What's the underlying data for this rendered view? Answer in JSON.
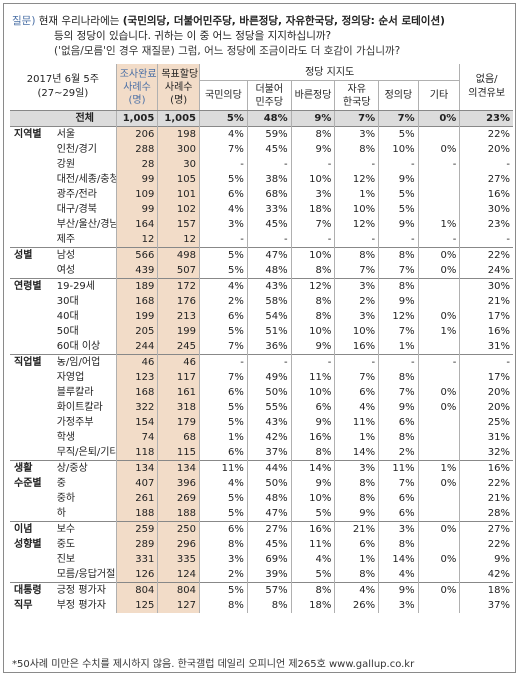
{
  "question": {
    "label": "질문)",
    "line1": "현재 우리나라에는",
    "line1_bold": "(국민의당, 더불어민주당, 바른정당, 자유한국당, 정의당: 순서 로테이션)",
    "line2": "등의 정당이 있습니다. 귀하는 이 중 어느 정당을 지지하십니까?",
    "line3": "('없음/모름'인 경우 재질문) 그럼, 어느 정당에 조금이라도 더 호감이 가십니까?"
  },
  "header": {
    "date": "2017년 6월 5주",
    "period": "(27~29일)",
    "sample": [
      "조사완료",
      "사례수",
      "(명)"
    ],
    "weighted": [
      "목표할당",
      "사례수",
      "(명)"
    ],
    "group": "정당 지지도",
    "parties": [
      "국민의당",
      "더불어민주당",
      "바른정당",
      "자유한국당",
      "정의당",
      "기타"
    ],
    "parties2": [
      "더불어",
      "민주당"
    ],
    "parties4": [
      "자유",
      "한국당"
    ],
    "none": [
      "없음/",
      "의견유보"
    ]
  },
  "rows": [
    {
      "group": "",
      "sub": "전체",
      "total": true,
      "v": [
        "1,005",
        "1,005",
        "5%",
        "48%",
        "9%",
        "7%",
        "7%",
        "0%",
        "23%"
      ]
    },
    {
      "group": "지역별",
      "sub": "서울",
      "sep": true,
      "v": [
        "206",
        "198",
        "4%",
        "59%",
        "8%",
        "3%",
        "5%",
        "",
        "22%"
      ]
    },
    {
      "group": "",
      "sub": "인천/경기",
      "v": [
        "288",
        "300",
        "7%",
        "45%",
        "9%",
        "8%",
        "10%",
        "0%",
        "20%"
      ]
    },
    {
      "group": "",
      "sub": "강원",
      "v": [
        "28",
        "30",
        "-",
        "-",
        "-",
        "-",
        "-",
        "-",
        "-"
      ]
    },
    {
      "group": "",
      "sub": "대전/세종/충청",
      "v": [
        "99",
        "105",
        "5%",
        "38%",
        "10%",
        "12%",
        "9%",
        "",
        "27%"
      ]
    },
    {
      "group": "",
      "sub": "광주/전라",
      "v": [
        "109",
        "101",
        "6%",
        "68%",
        "3%",
        "1%",
        "5%",
        "",
        "16%"
      ]
    },
    {
      "group": "",
      "sub": "대구/경북",
      "v": [
        "99",
        "102",
        "4%",
        "33%",
        "18%",
        "10%",
        "5%",
        "",
        "30%"
      ]
    },
    {
      "group": "",
      "sub": "부산/울산/경남",
      "v": [
        "164",
        "157",
        "3%",
        "45%",
        "7%",
        "12%",
        "9%",
        "1%",
        "23%"
      ]
    },
    {
      "group": "",
      "sub": "제주",
      "v": [
        "12",
        "12",
        "-",
        "-",
        "-",
        "-",
        "-",
        "-",
        "-"
      ]
    },
    {
      "group": "성별",
      "sub": "남성",
      "sep": true,
      "v": [
        "566",
        "498",
        "5%",
        "47%",
        "10%",
        "8%",
        "8%",
        "0%",
        "22%"
      ]
    },
    {
      "group": "",
      "sub": "여성",
      "v": [
        "439",
        "507",
        "5%",
        "48%",
        "8%",
        "7%",
        "7%",
        "0%",
        "24%"
      ]
    },
    {
      "group": "연령별",
      "sub": "19-29세",
      "sep": true,
      "v": [
        "189",
        "172",
        "4%",
        "43%",
        "12%",
        "3%",
        "8%",
        "",
        "30%"
      ]
    },
    {
      "group": "",
      "sub": "30대",
      "v": [
        "168",
        "176",
        "2%",
        "58%",
        "8%",
        "2%",
        "9%",
        "",
        "21%"
      ]
    },
    {
      "group": "",
      "sub": "40대",
      "v": [
        "199",
        "213",
        "6%",
        "54%",
        "8%",
        "3%",
        "12%",
        "0%",
        "17%"
      ]
    },
    {
      "group": "",
      "sub": "50대",
      "v": [
        "205",
        "199",
        "5%",
        "51%",
        "10%",
        "10%",
        "7%",
        "1%",
        "16%"
      ]
    },
    {
      "group": "",
      "sub": "60대 이상",
      "v": [
        "244",
        "245",
        "7%",
        "36%",
        "9%",
        "16%",
        "1%",
        "",
        "31%"
      ]
    },
    {
      "group": "직업별",
      "sub": "농/임/어업",
      "sep": true,
      "v": [
        "46",
        "46",
        "-",
        "-",
        "-",
        "-",
        "-",
        "-",
        "-"
      ]
    },
    {
      "group": "",
      "sub": "자영업",
      "v": [
        "123",
        "117",
        "7%",
        "49%",
        "11%",
        "7%",
        "8%",
        "",
        "17%"
      ]
    },
    {
      "group": "",
      "sub": "블루칼라",
      "v": [
        "168",
        "161",
        "6%",
        "50%",
        "10%",
        "6%",
        "7%",
        "0%",
        "20%"
      ]
    },
    {
      "group": "",
      "sub": "화이트칼라",
      "v": [
        "322",
        "318",
        "5%",
        "55%",
        "6%",
        "4%",
        "9%",
        "0%",
        "20%"
      ]
    },
    {
      "group": "",
      "sub": "가정주부",
      "v": [
        "154",
        "179",
        "5%",
        "43%",
        "9%",
        "11%",
        "6%",
        "",
        "25%"
      ]
    },
    {
      "group": "",
      "sub": "학생",
      "v": [
        "74",
        "68",
        "1%",
        "42%",
        "16%",
        "1%",
        "8%",
        "",
        "31%"
      ]
    },
    {
      "group": "",
      "sub": "무직/은퇴/기타",
      "v": [
        "118",
        "115",
        "6%",
        "37%",
        "8%",
        "14%",
        "2%",
        "",
        "32%"
      ]
    },
    {
      "group": "생활",
      "sub": "상/중상",
      "sep": true,
      "v": [
        "134",
        "134",
        "11%",
        "44%",
        "14%",
        "3%",
        "11%",
        "1%",
        "16%"
      ]
    },
    {
      "group": "수준별",
      "sub": "중",
      "v": [
        "407",
        "396",
        "4%",
        "50%",
        "9%",
        "8%",
        "7%",
        "0%",
        "22%"
      ]
    },
    {
      "group": "",
      "sub": "중하",
      "v": [
        "261",
        "269",
        "5%",
        "48%",
        "10%",
        "8%",
        "6%",
        "",
        "21%"
      ]
    },
    {
      "group": "",
      "sub": "하",
      "v": [
        "188",
        "188",
        "5%",
        "47%",
        "5%",
        "9%",
        "6%",
        "",
        "28%"
      ]
    },
    {
      "group": "이념",
      "sub": "보수",
      "sep": true,
      "v": [
        "259",
        "250",
        "6%",
        "27%",
        "16%",
        "21%",
        "3%",
        "0%",
        "27%"
      ]
    },
    {
      "group": "성향별",
      "sub": "중도",
      "v": [
        "289",
        "296",
        "8%",
        "45%",
        "11%",
        "6%",
        "8%",
        "",
        "22%"
      ]
    },
    {
      "group": "",
      "sub": "진보",
      "v": [
        "331",
        "335",
        "3%",
        "69%",
        "4%",
        "1%",
        "14%",
        "0%",
        "9%"
      ]
    },
    {
      "group": "",
      "sub": "모름/응답거절",
      "v": [
        "126",
        "124",
        "2%",
        "39%",
        "5%",
        "8%",
        "4%",
        "",
        "42%"
      ]
    },
    {
      "group": "대통령",
      "sub": "긍정 평가자",
      "sep": true,
      "v": [
        "804",
        "804",
        "5%",
        "57%",
        "8%",
        "4%",
        "9%",
        "0%",
        "18%"
      ]
    },
    {
      "group": "직무",
      "sub": "부정 평가자",
      "v": [
        "125",
        "127",
        "8%",
        "8%",
        "18%",
        "26%",
        "3%",
        "",
        "37%"
      ]
    }
  ],
  "footnote": "*50사례 미만은 수치를 제시하지 않음. 한국갤럽 데일리 오피니언 제265호 www.gallup.co.kr"
}
